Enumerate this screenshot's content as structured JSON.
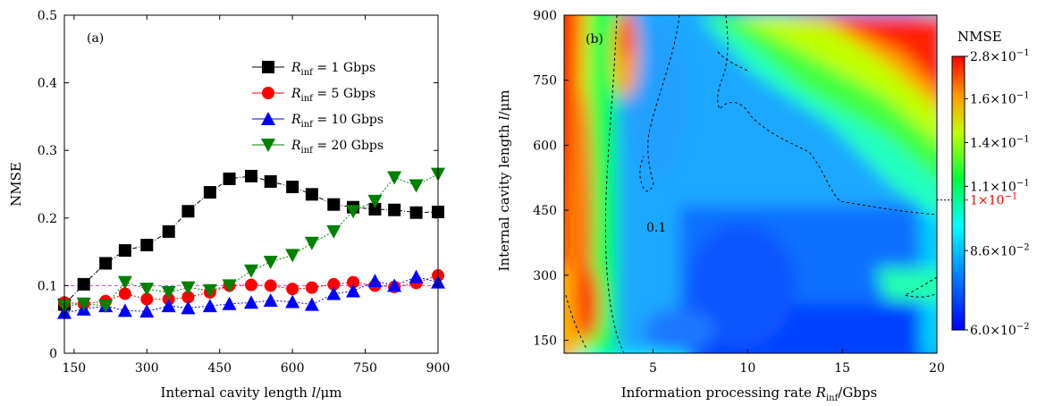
{
  "chart_data": [
    {
      "type": "line",
      "panel_label": "(a)",
      "xlabel_prefix": "Internal cavity length ",
      "xlabel_var": "l",
      "xlabel_unit": "/μm",
      "ylabel": "NMSE",
      "xlim": [
        130,
        900
      ],
      "ylim": [
        0,
        0.5
      ],
      "xticks": [
        150,
        300,
        450,
        600,
        750,
        900
      ],
      "yticks": [
        0,
        0.1,
        0.2,
        0.3,
        0.4,
        0.5
      ],
      "ytick_labels": [
        "0",
        "0.1",
        "0.2",
        "0.3",
        "0.4",
        "0.5"
      ],
      "reference_line": 0.1,
      "legend_placement": "top-right",
      "x": [
        130,
        170,
        215,
        255,
        300,
        345,
        385,
        430,
        470,
        515,
        555,
        600,
        640,
        685,
        725,
        770,
        810,
        855,
        900
      ],
      "series": [
        {
          "name_var": "R",
          "name_sub": "inf",
          "name_rest": " = 1   Gbps",
          "marker": "square",
          "color": "#000000",
          "values": [
            0.072,
            0.102,
            0.133,
            0.152,
            0.16,
            0.18,
            0.21,
            0.238,
            0.258,
            0.262,
            0.254,
            0.246,
            0.235,
            0.22,
            0.216,
            0.213,
            0.212,
            0.208,
            0.209
          ]
        },
        {
          "name_var": "R",
          "name_sub": "inf",
          "name_rest": " = 5   Gbps",
          "marker": "circle",
          "color": "#ff0000",
          "values": [
            0.075,
            0.073,
            0.077,
            0.088,
            0.08,
            0.08,
            0.083,
            0.09,
            0.1,
            0.101,
            0.1,
            0.095,
            0.097,
            0.102,
            0.105,
            0.1,
            0.098,
            0.104,
            0.115
          ]
        },
        {
          "name_var": "R",
          "name_sub": "inf",
          "name_rest": " = 10 Gbps",
          "marker": "triangle-up",
          "color": "#0000ff",
          "values": [
            0.06,
            0.065,
            0.07,
            0.063,
            0.062,
            0.07,
            0.067,
            0.07,
            0.073,
            0.075,
            0.078,
            0.076,
            0.072,
            0.088,
            0.092,
            0.107,
            0.1,
            0.113,
            0.105
          ]
        },
        {
          "name_var": "R",
          "name_sub": "inf",
          "name_rest": " = 20 Gbps",
          "marker": "triangle-down",
          "color": "#008000",
          "values": [
            0.07,
            0.073,
            0.07,
            0.105,
            0.095,
            0.09,
            0.097,
            0.093,
            0.1,
            0.122,
            0.135,
            0.145,
            0.163,
            0.18,
            0.21,
            0.225,
            0.26,
            0.248,
            0.265
          ]
        }
      ]
    },
    {
      "type": "heatmap",
      "panel_label": "(b)",
      "xlabel_prefix": "Information processing rate ",
      "xlabel_var": "R",
      "xlabel_sub": "inf",
      "xlabel_unit": "/Gbps",
      "ylabel_prefix": "Internal cavity length ",
      "ylabel_var": "l",
      "ylabel_unit": "/μm",
      "xlim": [
        0.3,
        20
      ],
      "ylim": [
        120,
        900
      ],
      "xticks": [
        5,
        10,
        15,
        20
      ],
      "yticks": [
        150,
        300,
        450,
        600,
        750,
        900
      ],
      "contour_label": "0.1",
      "colorbar": {
        "title": "NMSE",
        "ticks": [
          {
            "mant": "2.8",
            "exp": "−1",
            "pos": 1.0,
            "color": "#000000"
          },
          {
            "mant": "1.6",
            "exp": "−1",
            "pos": 0.845,
            "color": "#000000"
          },
          {
            "mant": "1.4",
            "exp": "−1",
            "pos": 0.685,
            "color": "#000000"
          },
          {
            "mant": "1.1",
            "exp": "−1",
            "pos": 0.525,
            "color": "#000000"
          },
          {
            "mant": "1",
            "exp": "−1",
            "pos": 0.475,
            "color": "#ff0000"
          },
          {
            "mant": "8.6",
            "exp": "−2",
            "pos": 0.29,
            "color": "#000000"
          },
          {
            "mant": "6.0",
            "exp": "−2",
            "pos": 0.0,
            "color": "#000000"
          }
        ]
      }
    }
  ]
}
